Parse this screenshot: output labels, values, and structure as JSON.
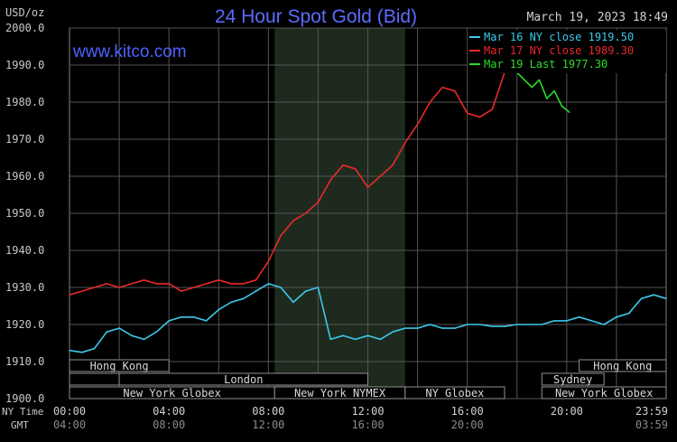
{
  "chart_data": {
    "type": "line",
    "title": "24 Hour Spot Gold (Bid)",
    "timestamp": "March 19, 2023 18:49",
    "website": "www.kitco.com",
    "ylabel": "USD/oz",
    "ylim": [
      1900,
      2000
    ],
    "y_ticks": [
      "2000.0",
      "1990.0",
      "1980.0",
      "1970.0",
      "1960.0",
      "1950.0",
      "1940.0",
      "1930.0",
      "1920.0",
      "1910.0",
      "1900.0"
    ],
    "x_row_labels": {
      "ny": "NY Time",
      "gmt": "GMT"
    },
    "x_ticks_ny": [
      "00:00",
      "04:00",
      "08:00",
      "12:00",
      "16:00",
      "20:00",
      "23:59"
    ],
    "x_ticks_gmt": [
      "04:00",
      "08:00",
      "12:00",
      "16:00",
      "20:00",
      "03:59"
    ],
    "legend": [
      {
        "label": "Mar 16 NY close 1919.50",
        "color": "#3cc8e8"
      },
      {
        "label": "Mar 17 NY close 1989.30",
        "color": "#e82a2a"
      },
      {
        "label": "Mar 19 Last 1977.30",
        "color": "#2adc2a"
      }
    ],
    "sessions": [
      {
        "label": "Hong Kong",
        "row": 1
      },
      {
        "label": "London",
        "row": 2
      },
      {
        "label": "New York Globex",
        "row": 3
      },
      {
        "label": "New York NYMEX",
        "row": 3
      },
      {
        "label": "NY Globex",
        "row": 3
      },
      {
        "label": "Hong Kong",
        "row": 1
      },
      {
        "label": "Sydney",
        "row": 2
      },
      {
        "label": "New York Globex",
        "row": 3
      }
    ],
    "series": [
      {
        "name": "Mar 16 NY close 1919.50",
        "color": "#3cc8e8",
        "x": [
          0,
          0.5,
          1,
          1.5,
          2,
          2.5,
          3,
          3.5,
          4,
          4.5,
          5,
          5.5,
          6,
          6.5,
          7,
          7.5,
          8,
          8.5,
          9,
          9.5,
          10,
          10.5,
          11,
          11.5,
          12,
          12.5,
          13,
          13.5,
          14,
          14.5,
          15,
          15.5,
          16,
          16.5,
          17,
          17.5,
          18,
          18.5,
          19,
          19.5,
          20,
          20.5,
          21,
          21.5,
          22,
          22.5,
          23,
          23.5,
          24
        ],
        "values": [
          1913,
          1912.5,
          1913.5,
          1918,
          1919,
          1917,
          1916,
          1918,
          1921,
          1922,
          1922,
          1921,
          1924,
          1926,
          1927,
          1929,
          1931,
          1930,
          1926,
          1929,
          1930,
          1916,
          1917,
          1916,
          1917,
          1916,
          1918,
          1919,
          1919,
          1920,
          1919,
          1919,
          1920,
          1920,
          1919.5,
          1919.5,
          1920,
          1920,
          1920,
          1921,
          1921,
          1922,
          1921,
          1920,
          1922,
          1923,
          1927,
          1928,
          1927
        ]
      },
      {
        "name": "Mar 17 NY close 1989.30",
        "color": "#e82a2a",
        "x": [
          0,
          0.5,
          1,
          1.5,
          2,
          2.5,
          3,
          3.5,
          4,
          4.5,
          5,
          5.5,
          6,
          6.5,
          7,
          7.5,
          8,
          8.5,
          9,
          9.5,
          10,
          10.5,
          11,
          11.5,
          12,
          12.5,
          13,
          13.5,
          14,
          14.5,
          15,
          15.5,
          16,
          16.5,
          17,
          17.5
        ],
        "values": [
          1928,
          1929,
          1930,
          1931,
          1930,
          1931,
          1932,
          1931,
          1931,
          1929,
          1930,
          1931,
          1932,
          1931,
          1931,
          1932,
          1937,
          1944,
          1948,
          1950,
          1953,
          1959,
          1963,
          1962,
          1957,
          1960,
          1963,
          1969,
          1974,
          1980,
          1984,
          1983,
          1977,
          1976,
          1978,
          1988
        ]
      },
      {
        "name": "Mar 19 Last 1977.30",
        "color": "#2adc2a",
        "x": [
          18,
          18.3,
          18.6,
          18.9,
          19.2,
          19.5,
          19.8,
          20.1
        ],
        "values": [
          1988,
          1986,
          1984,
          1986,
          1981,
          1983,
          1979,
          1977.3
        ]
      }
    ]
  }
}
